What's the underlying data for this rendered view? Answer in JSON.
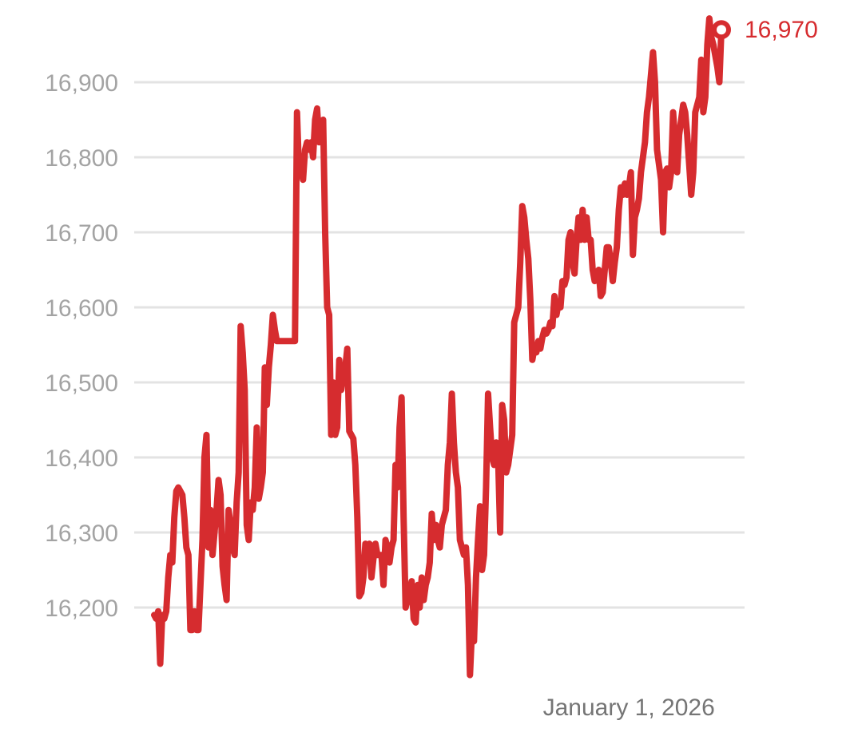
{
  "chart_data": {
    "type": "line",
    "title": "",
    "xlabel": "",
    "ylabel": "",
    "ylim": [
      16100,
      16990
    ],
    "y_ticks": [
      16200,
      16300,
      16400,
      16500,
      16600,
      16700,
      16800,
      16900
    ],
    "y_tick_labels": [
      "16,200",
      "16,300",
      "16,400",
      "16,500",
      "16,600",
      "16,700",
      "16,800",
      "16,900"
    ],
    "x_tick_labels": [
      "January 1, 2026"
    ],
    "x_tick_index": 236,
    "grid": true,
    "legend": "none",
    "color": "#d62c2f",
    "last_value": 16970,
    "last_value_label": "16,970",
    "series": [
      {
        "values": [
          16190,
          16185,
          16195,
          16125,
          16190,
          16185,
          16195,
          16240,
          16270,
          16260,
          16320,
          16355,
          16360,
          16355,
          16350,
          16320,
          16280,
          16270,
          16170,
          16170,
          16195,
          16170,
          16170,
          16230,
          16290,
          16400,
          16430,
          16280,
          16330,
          16270,
          16300,
          16330,
          16370,
          16350,
          16255,
          16230,
          16210,
          16330,
          16310,
          16280,
          16270,
          16340,
          16380,
          16575,
          16540,
          16490,
          16310,
          16290,
          16340,
          16330,
          16360,
          16440,
          16345,
          16360,
          16380,
          16520,
          16470,
          16520,
          16550,
          16590,
          16570,
          16555,
          16555,
          16555,
          16555,
          16555,
          16555,
          16555,
          16555,
          16555,
          16555,
          16860,
          16780,
          16790,
          16770,
          16810,
          16820,
          16810,
          16820,
          16800,
          16850,
          16865,
          16820,
          16830,
          16850,
          16700,
          16600,
          16590,
          16430,
          16500,
          16430,
          16440,
          16530,
          16490,
          16510,
          16520,
          16545,
          16435,
          16430,
          16425,
          16390,
          16320,
          16215,
          16220,
          16240,
          16285,
          16280,
          16285,
          16240,
          16265,
          16285,
          16270,
          16270,
          16270,
          16230,
          16290,
          16280,
          16260,
          16280,
          16290,
          16390,
          16360,
          16440,
          16480,
          16320,
          16200,
          16210,
          16220,
          16235,
          16185,
          16180,
          16230,
          16200,
          16240,
          16210,
          16230,
          16240,
          16260,
          16325,
          16290,
          16310,
          16290,
          16280,
          16310,
          16320,
          16330,
          16390,
          16420,
          16485,
          16420,
          16380,
          16360,
          16290,
          16280,
          16270,
          16280,
          16230,
          16110,
          16170,
          16155,
          16240,
          16290,
          16335,
          16250,
          16270,
          16360,
          16485,
          16440,
          16400,
          16390,
          16420,
          16400,
          16300,
          16470,
          16450,
          16380,
          16390,
          16410,
          16430,
          16580,
          16590,
          16600,
          16660,
          16735,
          16720,
          16690,
          16665,
          16610,
          16530,
          16545,
          16540,
          16555,
          16545,
          16560,
          16570,
          16565,
          16570,
          16580,
          16575,
          16615,
          16590,
          16605,
          16600,
          16635,
          16630,
          16640,
          16690,
          16700,
          16660,
          16645,
          16690,
          16720,
          16690,
          16730,
          16690,
          16720,
          16690,
          16690,
          16650,
          16635,
          16645,
          16650,
          16615,
          16620,
          16650,
          16680,
          16680,
          16660,
          16635,
          16660,
          16680,
          16730,
          16760,
          16750,
          16765,
          16750,
          16760,
          16780,
          16670,
          16720,
          16730,
          16745,
          16780,
          16800,
          16820,
          16860,
          16880,
          16910,
          16940,
          16900,
          16810,
          16790,
          16770,
          16700,
          16780,
          16785,
          16760,
          16780,
          16860,
          16820,
          16780,
          16830,
          16850,
          16870,
          16860,
          16830,
          16790,
          16750,
          16780,
          16860,
          16870,
          16880,
          16930,
          16860,
          16880,
          16950,
          16985,
          16960,
          16950,
          16935,
          16920,
          16900,
          16970
        ]
      }
    ]
  }
}
